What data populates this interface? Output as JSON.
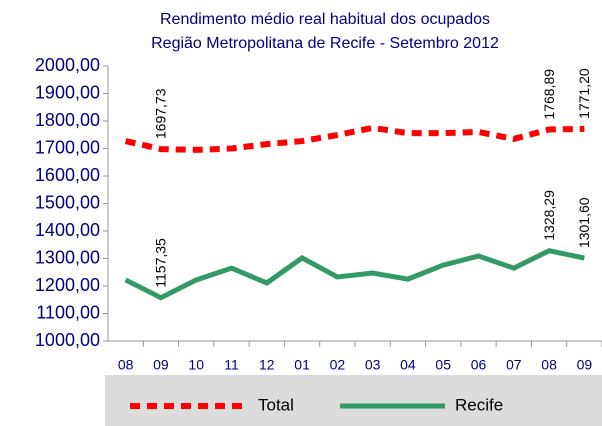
{
  "chart_data": {
    "type": "line",
    "title": [
      "Rendimento médio real habitual dos ocupados",
      "Região Metropolitana de Recife - Setembro 2012"
    ],
    "categories": [
      "08",
      "09",
      "10",
      "11",
      "12",
      "01",
      "02",
      "03",
      "04",
      "05",
      "06",
      "07",
      "08",
      "09"
    ],
    "series": [
      {
        "name": "Total",
        "color": "#ff0000",
        "dashed": true,
        "values": [
          1727,
          1697.73,
          1695,
          1700,
          1716,
          1727,
          1749,
          1775,
          1756,
          1756,
          1760,
          1735,
          1768.89,
          1771.2
        ],
        "value_labels": [
          null,
          "1697,73",
          null,
          null,
          null,
          null,
          null,
          null,
          null,
          null,
          null,
          null,
          "1768,89",
          "1771,20"
        ]
      },
      {
        "name": "Recife",
        "color": "#339966",
        "dashed": false,
        "values": [
          1222,
          1157.35,
          1222,
          1265,
          1211,
          1302,
          1233,
          1247,
          1225,
          1276,
          1309,
          1265,
          1328.29,
          1301.6
        ],
        "value_labels": [
          null,
          "1157,35",
          null,
          null,
          null,
          null,
          null,
          null,
          null,
          null,
          null,
          null,
          "1328,29",
          "1301,60"
        ]
      }
    ],
    "ylim": [
      1000,
      2000
    ],
    "yticks": [
      {
        "value": 1000,
        "label": "1000,00"
      },
      {
        "value": 1100,
        "label": "1100,00"
      },
      {
        "value": 1200,
        "label": "1200,00"
      },
      {
        "value": 1300,
        "label": "1300,00"
      },
      {
        "value": 1400,
        "label": "1400,00"
      },
      {
        "value": 1500,
        "label": "1500,00"
      },
      {
        "value": 1600,
        "label": "1600,00"
      },
      {
        "value": 1700,
        "label": "1700,00"
      },
      {
        "value": 1800,
        "label": "1800,00"
      },
      {
        "value": 1900,
        "label": "1900,00"
      },
      {
        "value": 2000,
        "label": "2000,00"
      }
    ],
    "legend": "bottom"
  }
}
